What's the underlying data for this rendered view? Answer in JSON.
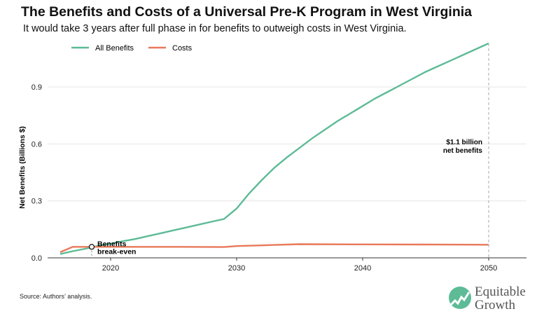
{
  "title": "The Benefits and Costs of a Universal Pre-K Program in West Virginia",
  "subtitle": "It would take 3 years after full phase in for benefits to outweigh costs in West Virginia.",
  "source": "Source: Authors’ analysis.",
  "logo": {
    "line1": "Equitable",
    "line2": "Growth"
  },
  "colors": {
    "benefits": "#5dbb96",
    "costs": "#e8795a",
    "grid": "#e6e6e6",
    "axis": "#333333",
    "logo": "#5dbb96"
  },
  "chart_data": {
    "type": "line",
    "title": "The Benefits and Costs of a Universal Pre-K Program in West Virginia",
    "ylabel": "Net Benefits (Billions $)",
    "xlabel": "",
    "xlim": [
      2015,
      2053
    ],
    "ylim": [
      0,
      1.1
    ],
    "xticks": [
      2020,
      2030,
      2040,
      2050
    ],
    "yticks": [
      0.0,
      0.3,
      0.6,
      0.9
    ],
    "ytick_labels": [
      "0.0",
      "0.3",
      "0.6",
      "0.9"
    ],
    "grid": "horizontal",
    "legend_position": "top-left",
    "series": [
      {
        "name": "All Benefits",
        "x": [
          2016,
          2017,
          2018,
          2019,
          2020,
          2021,
          2022,
          2023,
          2024,
          2025,
          2026,
          2027,
          2028,
          2029,
          2030,
          2031,
          2032,
          2033,
          2034,
          2035,
          2036,
          2037,
          2038,
          2039,
          2040,
          2041,
          2042,
          2043,
          2044,
          2045,
          2046,
          2047,
          2048,
          2049,
          2050
        ],
        "values": [
          0.02,
          0.035,
          0.048,
          0.063,
          0.075,
          0.088,
          0.1,
          0.115,
          0.13,
          0.145,
          0.16,
          0.175,
          0.19,
          0.205,
          0.26,
          0.34,
          0.41,
          0.475,
          0.53,
          0.58,
          0.63,
          0.675,
          0.72,
          0.76,
          0.8,
          0.84,
          0.875,
          0.91,
          0.945,
          0.98,
          1.01,
          1.04,
          1.07,
          1.1,
          1.13
        ]
      },
      {
        "name": "Costs",
        "x": [
          2016,
          2017,
          2018,
          2019,
          2020,
          2025,
          2029,
          2030,
          2033,
          2035,
          2040,
          2045,
          2050
        ],
        "values": [
          0.03,
          0.058,
          0.058,
          0.058,
          0.058,
          0.058,
          0.057,
          0.062,
          0.068,
          0.072,
          0.071,
          0.07,
          0.069
        ]
      }
    ],
    "annotations": [
      {
        "text_line1": "Benefits",
        "text_line2": "break-even",
        "x": 2018.5,
        "y": 0.058
      },
      {
        "text_line1": "$1.1 billion",
        "text_line2": "net benefits",
        "x": 2050,
        "y": 1.13
      }
    ]
  }
}
